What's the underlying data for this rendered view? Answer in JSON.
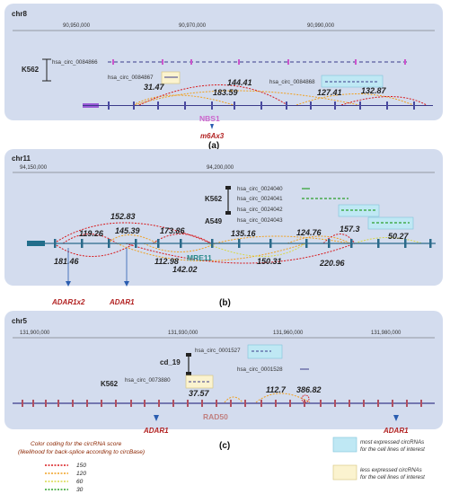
{
  "panels": {
    "a": {
      "chrom": "chr8",
      "coords": [
        "90,950,000",
        "90,970,000",
        "90,990,000"
      ],
      "cell_line": "K562",
      "circrnas": [
        "hsa_circ_0084866",
        "hsa_circ_0084867",
        "hsa_circ_0084868"
      ],
      "scores": [
        "31.47",
        "144.41",
        "183.59",
        "127.41",
        "132.87"
      ],
      "gene": "NBS1",
      "annotation": "m6Ax3",
      "label": "(a)"
    },
    "b": {
      "chrom": "chr11",
      "coords": [
        "94,150,000",
        "94,200,000"
      ],
      "cell_lines": [
        "K562",
        "A549"
      ],
      "circrnas": [
        "hsa_circ_0024040",
        "hsa_circ_0024041",
        "hsa_circ_0024042",
        "hsa_circ_0024043"
      ],
      "scores": [
        "152.83",
        "119.26",
        "145.39",
        "173.86",
        "135.16",
        "124.76",
        "157.3",
        "50.27",
        "181.46",
        "112.98",
        "142.02",
        "150.31",
        "220.96"
      ],
      "gene": "MRE11",
      "annotations": [
        "ADAR1x2",
        "ADAR1"
      ],
      "label": "(b)"
    },
    "c": {
      "chrom": "chr5",
      "coords": [
        "131,900,000",
        "131,930,000",
        "131,960,000",
        "131,980,000"
      ],
      "cell_lines": [
        "cd_19",
        "K562"
      ],
      "circrnas": [
        "hsa_circ_0001527",
        "hsa_circ_0001528",
        "hsa_circ_0073880"
      ],
      "scores": [
        "37.57",
        "112.7",
        "386.82"
      ],
      "gene": "RAD50",
      "annotations": [
        "ADAR1",
        "ADAR1"
      ],
      "label": "(c)"
    }
  },
  "legend": {
    "title_line1": "Color coding for the circRNA score",
    "title_line2": "(likelihood for back-splice according to circBase)",
    "items": [
      {
        "value": "150",
        "color": "#d7191c"
      },
      {
        "value": "120",
        "color": "#f0a020"
      },
      {
        "value": "60",
        "color": "#d8d84a"
      },
      {
        "value": "30",
        "color": "#2ca02c"
      }
    ],
    "most_expressed_line1": "most expressed circRNAs",
    "most_expressed_line2": "for the cell lines of interest",
    "less_expressed_line1": "less expressed circRNAs",
    "less_expressed_line2": "for the cell lines of interest",
    "colors": {
      "panel_bg": "#d3dcee",
      "most": "#bfe8f4",
      "less": "#fbf3cf",
      "gene_a": "#cc66cc",
      "gene_b": "#2a8a8a",
      "gene_c": "#c08080"
    }
  }
}
